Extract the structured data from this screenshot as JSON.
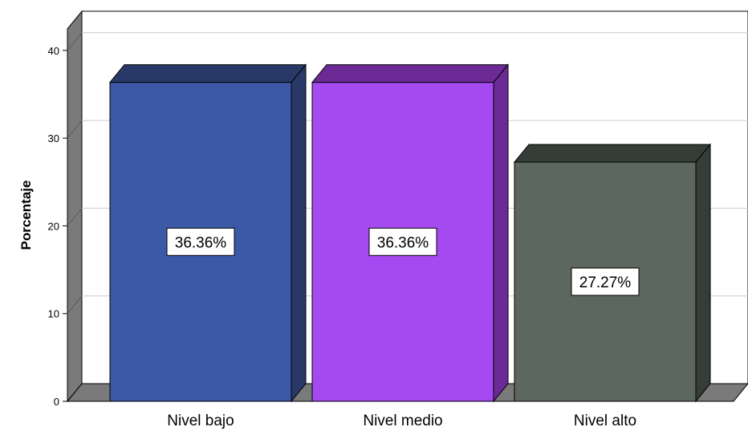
{
  "chart_data": {
    "type": "bar",
    "categories": [
      "Nivel bajo",
      "Nivel medio",
      "Nivel alto"
    ],
    "values": [
      36.36,
      36.36,
      27.27
    ],
    "data_labels": [
      "36.36%",
      "36.36%",
      "27.27%"
    ],
    "title": "",
    "xlabel": "",
    "ylabel": "Porcentaje",
    "ylim": [
      0,
      42
    ],
    "yticks": [
      "0",
      "10",
      "20",
      "30",
      "40"
    ],
    "grid": true,
    "style": "3d",
    "colors": {
      "bars": [
        "#3c59a8",
        "#a54af0",
        "#5c6760"
      ],
      "bar_tops": [
        "#283968",
        "#6b2a95",
        "#343d37"
      ],
      "walls": "#7a7a7a",
      "grid": "#cccccc"
    }
  }
}
